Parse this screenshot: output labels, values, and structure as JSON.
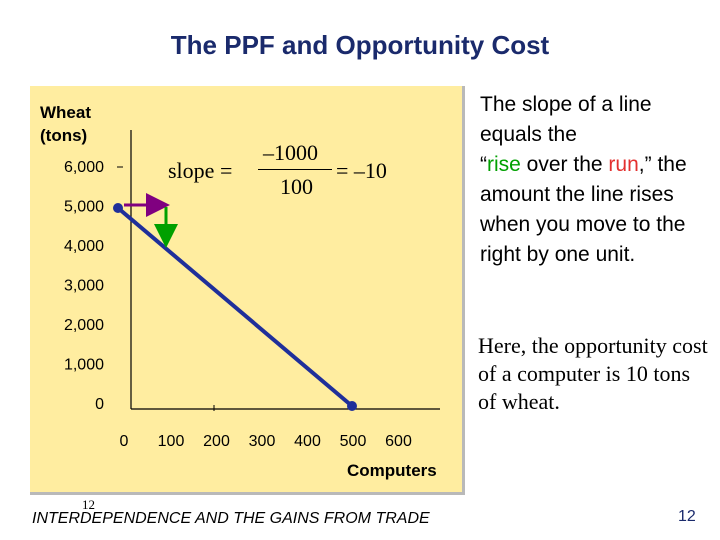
{
  "title": "The PPF and Opportunity Cost",
  "side_text": {
    "line1": "The slope of a line equals the",
    "quote_open": "“",
    "rise": "rise",
    "over_the": " over the ",
    "run": "run",
    "quote_close": ",”",
    "line3": "the amount the line rises when you move to the right by one unit."
  },
  "side_text_2": "Here, the opportunity cost of a computer is 10 tons of wheat.",
  "formula": {
    "label": "slope =",
    "numerator": "–1000",
    "denominator": "100",
    "result": "= –10"
  },
  "footer": {
    "small_number": "12",
    "text": "INTERDEPENDENCE AND THE GAINS FROM TRADE",
    "page_number": "12"
  },
  "colors": {
    "title": "#1a2a6c",
    "panel": "#ffeda0",
    "line": "#1f2f9a",
    "run_arrow": "#800080",
    "rise_arrow": "#00a000",
    "rise_text": "#00a000",
    "run_text": "#e3302f"
  },
  "chart_data": {
    "type": "line",
    "ylabel": "Wheat (tons)",
    "xlabel": "Computers",
    "xlim": [
      0,
      600
    ],
    "ylim": [
      0,
      6000
    ],
    "x_ticks": [
      "0",
      "100",
      "200",
      "300",
      "400",
      "500",
      "600"
    ],
    "y_ticks": [
      "0",
      "1,000",
      "2,000",
      "3,000",
      "4,000",
      "5,000",
      "6,000"
    ],
    "series": [
      {
        "x": [
          0,
          500
        ],
        "y": [
          5000,
          0
        ]
      }
    ],
    "annotations": [
      {
        "type": "run-arrow",
        "from": [
          0,
          5000
        ],
        "to": [
          100,
          5000
        ]
      },
      {
        "type": "rise-arrow",
        "from": [
          100,
          5000
        ],
        "to": [
          100,
          4000
        ]
      }
    ]
  }
}
